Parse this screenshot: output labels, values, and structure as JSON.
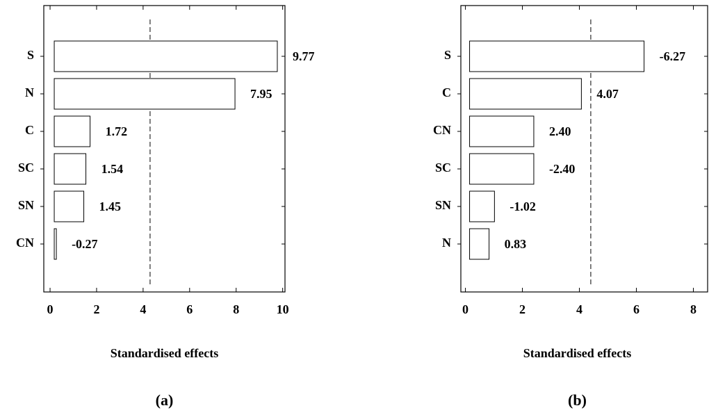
{
  "chart_data": [
    {
      "type": "pareto",
      "caption": "(a)",
      "xlabel": "Standardised effects",
      "categories": [
        "S",
        "N",
        "C",
        "SC",
        "SN",
        "CN"
      ],
      "values": [
        9.77,
        7.95,
        1.72,
        1.54,
        1.45,
        -0.27
      ],
      "color": "#ffffff",
      "xlim": [
        -0.27,
        10.1
      ],
      "xticks": [
        0,
        2,
        4,
        6,
        8,
        10
      ],
      "reference_line": 4.3
    },
    {
      "type": "pareto",
      "caption": "(b)",
      "xlabel": "Standardised effects",
      "categories": [
        "S",
        "C",
        "CN",
        "SC",
        "SN",
        "N"
      ],
      "values": [
        -6.27,
        4.07,
        2.4,
        -2.4,
        -1.02,
        0.83
      ],
      "value_labels": [
        "-6.27",
        "4.07",
        "2.40",
        "-2.40",
        "-1.02",
        "0.83"
      ],
      "color": "#ffffff",
      "xlim": [
        -0.16,
        8.5
      ],
      "xticks": [
        0,
        2,
        4,
        6,
        8
      ],
      "reference_line": 4.4
    }
  ]
}
